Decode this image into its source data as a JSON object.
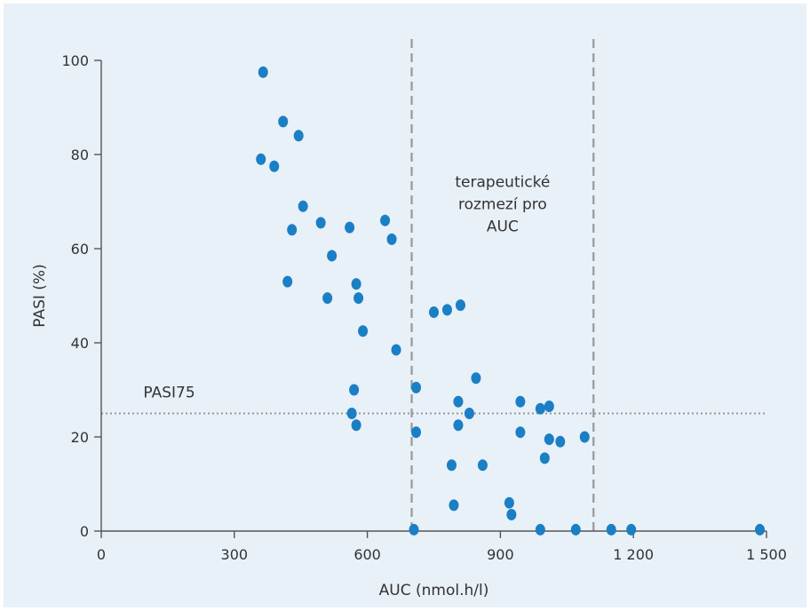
{
  "chart_data": {
    "type": "scatter",
    "title": "",
    "xlabel": "AUC (nmol.h/l)",
    "ylabel": "PASI  (%)",
    "xlim": [
      0,
      1500
    ],
    "ylim": [
      0,
      100
    ],
    "x_ticks": [
      0,
      300,
      600,
      900,
      1200,
      1500
    ],
    "x_tick_labels": [
      "0",
      "300",
      "600",
      "900",
      "1 200",
      "1 500"
    ],
    "y_ticks": [
      0,
      20,
      40,
      60,
      80,
      100
    ],
    "y_tick_labels": [
      "0",
      "20",
      "40",
      "60",
      "80",
      "100"
    ],
    "grid": false,
    "colors": {
      "points": "#1a7fc4",
      "reference_lines": "#999999",
      "axes": "#555555",
      "background": "#e8f0f8"
    },
    "reference_lines": {
      "horizontal": [
        {
          "y": 25,
          "label": "PASI75",
          "style": "dotted"
        }
      ],
      "vertical": [
        {
          "x": 700,
          "style": "dashed"
        },
        {
          "x": 1110,
          "style": "dashed"
        }
      ]
    },
    "annotations": [
      {
        "text_lines": [
          "terapeutické",
          "rozmezí pro",
          "AUC"
        ],
        "x": 905,
        "y": 69
      }
    ],
    "points": [
      {
        "x": 365,
        "y": 97.5
      },
      {
        "x": 410,
        "y": 87
      },
      {
        "x": 445,
        "y": 84
      },
      {
        "x": 360,
        "y": 79
      },
      {
        "x": 390,
        "y": 77.5
      },
      {
        "x": 455,
        "y": 69
      },
      {
        "x": 430,
        "y": 64
      },
      {
        "x": 495,
        "y": 65.5
      },
      {
        "x": 560,
        "y": 64.5
      },
      {
        "x": 520,
        "y": 58.5
      },
      {
        "x": 420,
        "y": 53
      },
      {
        "x": 510,
        "y": 49.5
      },
      {
        "x": 575,
        "y": 52.5
      },
      {
        "x": 580,
        "y": 49.5
      },
      {
        "x": 640,
        "y": 66
      },
      {
        "x": 655,
        "y": 62
      },
      {
        "x": 590,
        "y": 42.5
      },
      {
        "x": 665,
        "y": 38.5
      },
      {
        "x": 570,
        "y": 30
      },
      {
        "x": 565,
        "y": 25
      },
      {
        "x": 575,
        "y": 22.5
      },
      {
        "x": 710,
        "y": 30.5
      },
      {
        "x": 710,
        "y": 21
      },
      {
        "x": 705,
        "y": 0.3
      },
      {
        "x": 750,
        "y": 46.5
      },
      {
        "x": 780,
        "y": 47
      },
      {
        "x": 810,
        "y": 48
      },
      {
        "x": 845,
        "y": 32.5
      },
      {
        "x": 805,
        "y": 27.5
      },
      {
        "x": 830,
        "y": 25
      },
      {
        "x": 805,
        "y": 22.5
      },
      {
        "x": 790,
        "y": 14
      },
      {
        "x": 860,
        "y": 14
      },
      {
        "x": 795,
        "y": 5.5
      },
      {
        "x": 920,
        "y": 6
      },
      {
        "x": 925,
        "y": 3.5
      },
      {
        "x": 945,
        "y": 27.5
      },
      {
        "x": 945,
        "y": 21
      },
      {
        "x": 990,
        "y": 26
      },
      {
        "x": 1010,
        "y": 26.5
      },
      {
        "x": 1010,
        "y": 19.5
      },
      {
        "x": 1035,
        "y": 19
      },
      {
        "x": 1000,
        "y": 15.5
      },
      {
        "x": 1090,
        "y": 20
      },
      {
        "x": 990,
        "y": 0.3
      },
      {
        "x": 1070,
        "y": 0.3
      },
      {
        "x": 1150,
        "y": 0.3
      },
      {
        "x": 1195,
        "y": 0.3
      },
      {
        "x": 1485,
        "y": 0.3
      }
    ]
  }
}
